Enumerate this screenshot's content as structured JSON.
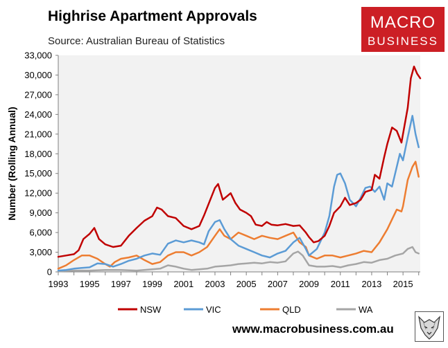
{
  "header": {
    "title": "Highrise Apartment Approvals",
    "subtitle": "Source: Australian Bureau of Statistics"
  },
  "logo": {
    "line1": "MACRO",
    "line2": "BUSINESS"
  },
  "footer": {
    "url": "www.macrobusiness.com.au"
  },
  "colors": {
    "NSW": "#c00000",
    "VIC": "#5b9bd5",
    "QLD": "#ed7d31",
    "WA": "#a5a5a5",
    "plot_bg": "#f2f2f2"
  },
  "chart_data": {
    "type": "line",
    "title": "Highrise Apartment Approvals",
    "ylabel": "Number (Rolling Annual)",
    "xlabel": "",
    "xlim": [
      1993,
      2016.1
    ],
    "ylim": [
      0,
      33000
    ],
    "yticks": [
      "0",
      "3,000",
      "6,000",
      "9,000",
      "12,000",
      "15,000",
      "18,000",
      "21,000",
      "24,000",
      "27,000",
      "30,000",
      "33,000"
    ],
    "xticks": [
      "1993",
      "1995",
      "1997",
      "1999",
      "2001",
      "2003",
      "2005",
      "2007",
      "2009",
      "2011",
      "2013",
      "2015"
    ],
    "legend_position": "bottom",
    "series": [
      {
        "name": "NSW",
        "points": [
          [
            1993,
            2300
          ],
          [
            1993.5,
            2500
          ],
          [
            1994,
            2700
          ],
          [
            1994.3,
            3300
          ],
          [
            1994.6,
            5000
          ],
          [
            1995,
            5800
          ],
          [
            1995.3,
            6700
          ],
          [
            1995.6,
            5000
          ],
          [
            1996,
            4200
          ],
          [
            1996.5,
            3800
          ],
          [
            1997,
            4000
          ],
          [
            1997.5,
            5500
          ],
          [
            1998,
            6700
          ],
          [
            1998.5,
            7800
          ],
          [
            1999,
            8500
          ],
          [
            1999.3,
            9800
          ],
          [
            1999.6,
            9500
          ],
          [
            2000,
            8500
          ],
          [
            2000.5,
            8200
          ],
          [
            2001,
            7000
          ],
          [
            2001.5,
            6500
          ],
          [
            2002,
            7000
          ],
          [
            2002.3,
            8600
          ],
          [
            2002.7,
            11000
          ],
          [
            2003,
            12800
          ],
          [
            2003.2,
            13400
          ],
          [
            2003.5,
            11000
          ],
          [
            2003.8,
            11600
          ],
          [
            2004,
            12000
          ],
          [
            2004.3,
            10500
          ],
          [
            2004.6,
            9500
          ],
          [
            2005,
            9000
          ],
          [
            2005.3,
            8500
          ],
          [
            2005.6,
            7200
          ],
          [
            2006,
            7000
          ],
          [
            2006.3,
            7600
          ],
          [
            2006.6,
            7200
          ],
          [
            2007,
            7100
          ],
          [
            2007.5,
            7300
          ],
          [
            2008,
            7000
          ],
          [
            2008.4,
            7100
          ],
          [
            2008.8,
            6000
          ],
          [
            2009,
            5300
          ],
          [
            2009.3,
            4500
          ],
          [
            2009.6,
            4700
          ],
          [
            2010,
            5500
          ],
          [
            2010.3,
            7000
          ],
          [
            2010.6,
            9000
          ],
          [
            2011,
            10000
          ],
          [
            2011.3,
            11300
          ],
          [
            2011.6,
            10200
          ],
          [
            2012,
            10500
          ],
          [
            2012.3,
            11000
          ],
          [
            2012.6,
            12200
          ],
          [
            2013,
            12500
          ],
          [
            2013.2,
            14800
          ],
          [
            2013.5,
            14200
          ],
          [
            2013.8,
            17500
          ],
          [
            2014,
            19500
          ],
          [
            2014.3,
            22000
          ],
          [
            2014.6,
            21500
          ],
          [
            2014.9,
            19700
          ],
          [
            2015,
            21000
          ],
          [
            2015.3,
            25000
          ],
          [
            2015.5,
            29500
          ],
          [
            2015.7,
            31300
          ],
          [
            2015.9,
            30200
          ],
          [
            2016.1,
            29500
          ]
        ]
      },
      {
        "name": "VIC",
        "points": [
          [
            1993,
            200
          ],
          [
            1993.5,
            300
          ],
          [
            1994,
            500
          ],
          [
            1994.5,
            600
          ],
          [
            1995,
            700
          ],
          [
            1995.5,
            1300
          ],
          [
            1996,
            1200
          ],
          [
            1996.5,
            800
          ],
          [
            1997,
            1200
          ],
          [
            1997.5,
            1700
          ],
          [
            1998,
            2000
          ],
          [
            1998.5,
            2500
          ],
          [
            1999,
            2800
          ],
          [
            1999.5,
            2600
          ],
          [
            2000,
            4300
          ],
          [
            2000.5,
            4800
          ],
          [
            2001,
            4500
          ],
          [
            2001.5,
            4800
          ],
          [
            2002,
            4500
          ],
          [
            2002.3,
            4200
          ],
          [
            2002.6,
            6200
          ],
          [
            2003,
            7600
          ],
          [
            2003.3,
            7900
          ],
          [
            2003.6,
            6500
          ],
          [
            2004,
            5000
          ],
          [
            2004.5,
            4000
          ],
          [
            2005,
            3500
          ],
          [
            2005.5,
            3000
          ],
          [
            2006,
            2500
          ],
          [
            2006.5,
            2200
          ],
          [
            2007,
            2800
          ],
          [
            2007.5,
            3200
          ],
          [
            2008,
            4500
          ],
          [
            2008.4,
            5200
          ],
          [
            2008.8,
            3500
          ],
          [
            2009,
            2500
          ],
          [
            2009.5,
            3500
          ],
          [
            2010,
            6000
          ],
          [
            2010.3,
            8500
          ],
          [
            2010.6,
            13000
          ],
          [
            2010.8,
            14800
          ],
          [
            2011,
            15000
          ],
          [
            2011.3,
            13500
          ],
          [
            2011.6,
            11000
          ],
          [
            2012,
            10000
          ],
          [
            2012.3,
            11300
          ],
          [
            2012.6,
            12800
          ],
          [
            2012.9,
            13000
          ],
          [
            2013.2,
            12200
          ],
          [
            2013.5,
            13000
          ],
          [
            2013.8,
            11000
          ],
          [
            2014,
            13500
          ],
          [
            2014.3,
            13000
          ],
          [
            2014.6,
            16000
          ],
          [
            2014.8,
            18000
          ],
          [
            2015,
            17000
          ],
          [
            2015.3,
            20500
          ],
          [
            2015.6,
            23800
          ],
          [
            2015.8,
            21000
          ],
          [
            2016,
            19000
          ]
        ]
      },
      {
        "name": "QLD",
        "points": [
          [
            1993,
            500
          ],
          [
            1993.5,
            1000
          ],
          [
            1994,
            1800
          ],
          [
            1994.5,
            2500
          ],
          [
            1995,
            2500
          ],
          [
            1995.5,
            2000
          ],
          [
            1996,
            1200
          ],
          [
            1996.3,
            800
          ],
          [
            1996.6,
            1500
          ],
          [
            1997,
            2000
          ],
          [
            1997.5,
            2200
          ],
          [
            1998,
            2500
          ],
          [
            1998.5,
            1800
          ],
          [
            1999,
            1200
          ],
          [
            1999.5,
            1500
          ],
          [
            2000,
            2500
          ],
          [
            2000.5,
            3000
          ],
          [
            2001,
            3000
          ],
          [
            2001.5,
            2500
          ],
          [
            2002,
            3000
          ],
          [
            2002.5,
            3800
          ],
          [
            2003,
            5500
          ],
          [
            2003.3,
            6500
          ],
          [
            2003.6,
            5500
          ],
          [
            2004,
            5000
          ],
          [
            2004.5,
            6000
          ],
          [
            2005,
            5500
          ],
          [
            2005.5,
            5000
          ],
          [
            2006,
            5500
          ],
          [
            2006.5,
            5200
          ],
          [
            2007,
            5000
          ],
          [
            2007.5,
            5500
          ],
          [
            2008,
            6000
          ],
          [
            2008.4,
            4500
          ],
          [
            2008.8,
            3800
          ],
          [
            2009,
            2500
          ],
          [
            2009.5,
            2000
          ],
          [
            2010,
            2500
          ],
          [
            2010.5,
            2500
          ],
          [
            2011,
            2200
          ],
          [
            2011.5,
            2500
          ],
          [
            2012,
            2800
          ],
          [
            2012.5,
            3200
          ],
          [
            2013,
            3000
          ],
          [
            2013.5,
            4500
          ],
          [
            2014,
            6500
          ],
          [
            2014.3,
            8000
          ],
          [
            2014.6,
            9500
          ],
          [
            2014.9,
            9200
          ],
          [
            2015,
            10000
          ],
          [
            2015.3,
            14000
          ],
          [
            2015.6,
            16000
          ],
          [
            2015.8,
            16800
          ],
          [
            2016,
            14500
          ]
        ]
      },
      {
        "name": "WA",
        "points": [
          [
            1993,
            100
          ],
          [
            1994,
            200
          ],
          [
            1995,
            200
          ],
          [
            1996,
            300
          ],
          [
            1997,
            300
          ],
          [
            1998,
            200
          ],
          [
            1999,
            400
          ],
          [
            1999.5,
            500
          ],
          [
            2000,
            1000
          ],
          [
            2000.5,
            800
          ],
          [
            2001,
            500
          ],
          [
            2001.5,
            300
          ],
          [
            2002,
            400
          ],
          [
            2002.5,
            500
          ],
          [
            2003,
            800
          ],
          [
            2003.5,
            900
          ],
          [
            2004,
            1000
          ],
          [
            2004.5,
            1200
          ],
          [
            2005,
            1300
          ],
          [
            2005.5,
            1400
          ],
          [
            2006,
            1300
          ],
          [
            2006.5,
            1500
          ],
          [
            2007,
            1400
          ],
          [
            2007.5,
            1600
          ],
          [
            2008,
            2800
          ],
          [
            2008.3,
            3100
          ],
          [
            2008.6,
            2500
          ],
          [
            2009,
            1000
          ],
          [
            2009.5,
            800
          ],
          [
            2010,
            800
          ],
          [
            2010.5,
            900
          ],
          [
            2011,
            700
          ],
          [
            2011.5,
            1000
          ],
          [
            2012,
            1200
          ],
          [
            2012.5,
            1500
          ],
          [
            2013,
            1400
          ],
          [
            2013.5,
            1800
          ],
          [
            2014,
            2000
          ],
          [
            2014.5,
            2500
          ],
          [
            2015,
            2800
          ],
          [
            2015.3,
            3500
          ],
          [
            2015.6,
            3800
          ],
          [
            2015.8,
            3000
          ],
          [
            2016,
            2800
          ]
        ]
      }
    ]
  }
}
